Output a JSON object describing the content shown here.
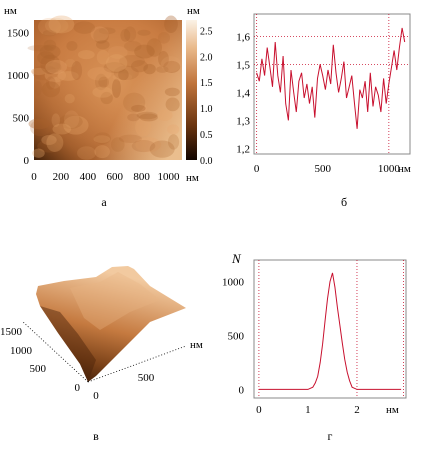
{
  "chart_data": [
    {
      "type": "heatmap",
      "panel_label": "а",
      "x_unit_label": "нм",
      "y_unit_label": "нм",
      "colorbar_unit_label": "нм",
      "x_ticks": [
        0,
        200,
        400,
        600,
        800,
        1000
      ],
      "y_ticks": [
        0,
        500,
        1000,
        1500
      ],
      "colorbar_ticks": [
        "0.0",
        "0.5",
        "1.0",
        "1.5",
        "2.0",
        "2.5"
      ],
      "xlim": [
        0,
        1100
      ],
      "ylim": [
        0,
        1650
      ],
      "zlim": [
        0,
        2.7
      ],
      "colors": {
        "low": "#3a1d08",
        "mid": "#c0743c",
        "high": "#f6d8b0"
      }
    },
    {
      "type": "line",
      "panel_label": "б",
      "x_unit_label": "нм",
      "x_ticks": [
        0,
        500,
        1000
      ],
      "y_ticks": [
        "1,2",
        "1,3",
        "1,4",
        "1,5",
        "1,6"
      ],
      "xlim": [
        -20,
        1160
      ],
      "ylim": [
        1.18,
        1.68
      ],
      "dotted_hlines": [
        1.6,
        1.5
      ],
      "dotted_vlines": [
        0,
        1000
      ],
      "series": [
        {
          "color": "#c8102e",
          "x": [
            0,
            20,
            40,
            60,
            80,
            100,
            120,
            140,
            160,
            180,
            200,
            220,
            240,
            260,
            280,
            300,
            320,
            340,
            360,
            380,
            400,
            420,
            440,
            460,
            480,
            500,
            520,
            540,
            560,
            580,
            600,
            620,
            640,
            660,
            680,
            700,
            720,
            740,
            760,
            780,
            800,
            820,
            840,
            860,
            880,
            900,
            920,
            940,
            960,
            980,
            1000,
            1020,
            1040,
            1060,
            1080,
            1100,
            1120
          ],
          "values": [
            1.47,
            1.44,
            1.52,
            1.46,
            1.56,
            1.49,
            1.42,
            1.58,
            1.46,
            1.4,
            1.53,
            1.36,
            1.3,
            1.48,
            1.4,
            1.33,
            1.44,
            1.47,
            1.38,
            1.43,
            1.36,
            1.42,
            1.31,
            1.45,
            1.5,
            1.46,
            1.41,
            1.48,
            1.43,
            1.57,
            1.47,
            1.4,
            1.45,
            1.51,
            1.38,
            1.42,
            1.46,
            1.36,
            1.27,
            1.41,
            1.38,
            1.44,
            1.33,
            1.47,
            1.35,
            1.42,
            1.39,
            1.33,
            1.45,
            1.36,
            1.43,
            1.49,
            1.55,
            1.48,
            1.56,
            1.63,
            1.58
          ]
        }
      ]
    },
    {
      "type": "surface",
      "panel_label": "в",
      "axis_unit_label": "нм",
      "y_ticks": [
        0,
        500,
        1000,
        1500
      ],
      "x_ticks": [
        0,
        500
      ]
    },
    {
      "type": "line",
      "panel_label": "г",
      "y_label": "N",
      "x_unit_label": "нм",
      "x_ticks": [
        0,
        1,
        2
      ],
      "y_ticks": [
        0,
        500,
        1000
      ],
      "xlim": [
        -0.1,
        3.0
      ],
      "ylim": [
        -80,
        1200
      ],
      "dotted_vlines": [
        0,
        2,
        2.95
      ],
      "series": [
        {
          "color": "#c8102e",
          "x": [
            0,
            0.5,
            1.0,
            1.1,
            1.15,
            1.2,
            1.25,
            1.3,
            1.35,
            1.4,
            1.45,
            1.5,
            1.55,
            1.6,
            1.65,
            1.7,
            1.75,
            1.8,
            1.85,
            1.9,
            2.0,
            2.5,
            2.9
          ],
          "values": [
            0,
            0,
            0,
            20,
            60,
            120,
            250,
            420,
            640,
            840,
            1000,
            1080,
            950,
            760,
            600,
            430,
            280,
            160,
            80,
            20,
            0,
            0,
            0
          ]
        }
      ]
    }
  ]
}
